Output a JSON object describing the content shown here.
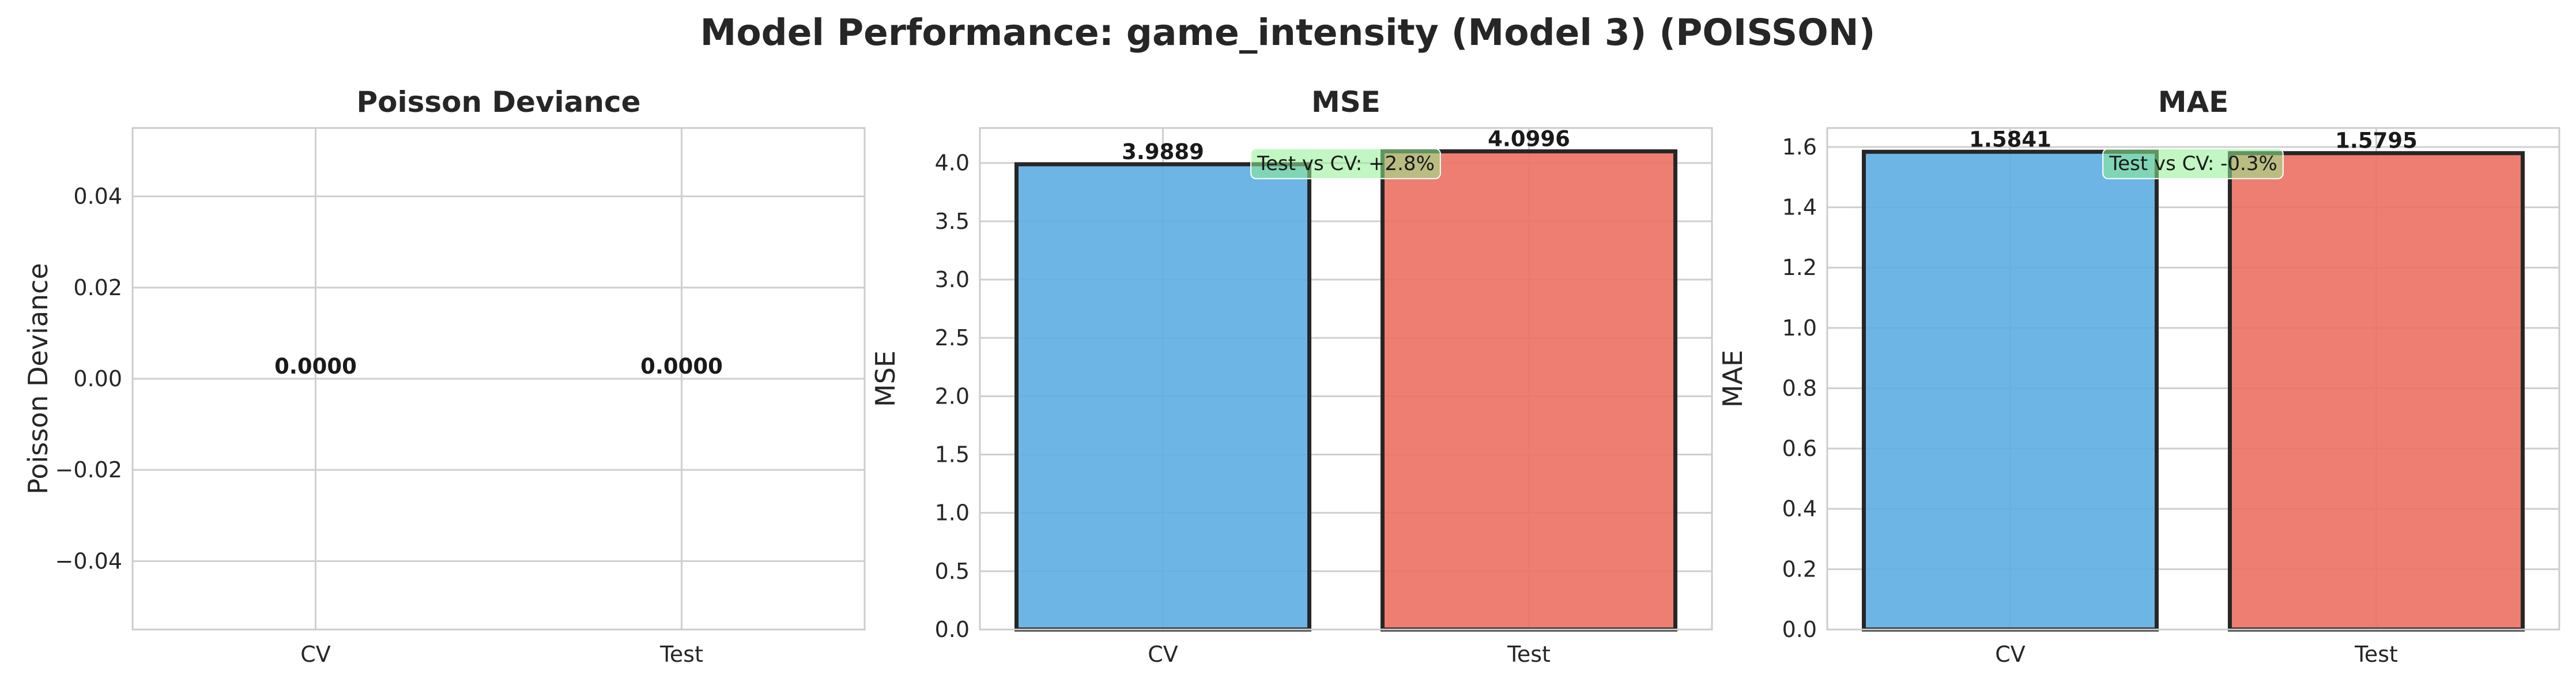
{
  "title": "Model Performance: game_intensity (Model 3) (POISSON)",
  "colors": {
    "cv": "#5DADE2",
    "test": "#EC7063",
    "annotation_bg": "#90EE90"
  },
  "chart_data": [
    {
      "type": "bar",
      "title": "Poisson Deviance",
      "xlabel": "",
      "ylabel": "Poisson Deviance",
      "categories": [
        "CV",
        "Test"
      ],
      "values": [
        0.0,
        0.0
      ],
      "value_labels": [
        "0.0000",
        "0.0000"
      ],
      "ylim": [
        -0.055,
        0.055
      ],
      "yticks": [
        -0.04,
        -0.02,
        0.0,
        0.02,
        0.04
      ],
      "ytick_labels": [
        "−0.04",
        "−0.02",
        "0.00",
        "0.02",
        "0.04"
      ],
      "grid": true
    },
    {
      "type": "bar",
      "title": "MSE",
      "xlabel": "",
      "ylabel": "MSE",
      "categories": [
        "CV",
        "Test"
      ],
      "values": [
        3.9889,
        4.0996
      ],
      "value_labels": [
        "3.9889",
        "4.0996"
      ],
      "ylim": [
        0,
        4.3
      ],
      "yticks": [
        0.0,
        0.5,
        1.0,
        1.5,
        2.0,
        2.5,
        3.0,
        3.5,
        4.0
      ],
      "ytick_labels": [
        "0.0",
        "0.5",
        "1.0",
        "1.5",
        "2.0",
        "2.5",
        "3.0",
        "3.5",
        "4.0"
      ],
      "annotation": "Test vs CV: +2.8%",
      "grid": true
    },
    {
      "type": "bar",
      "title": "MAE",
      "xlabel": "",
      "ylabel": "MAE",
      "categories": [
        "CV",
        "Test"
      ],
      "values": [
        1.5841,
        1.5795
      ],
      "value_labels": [
        "1.5841",
        "1.5795"
      ],
      "ylim": [
        0,
        1.663
      ],
      "yticks": [
        0.0,
        0.2,
        0.4,
        0.6,
        0.8,
        1.0,
        1.2,
        1.4,
        1.6
      ],
      "ytick_labels": [
        "0.0",
        "0.2",
        "0.4",
        "0.6",
        "0.8",
        "1.0",
        "1.2",
        "1.4",
        "1.6"
      ],
      "annotation": "Test vs CV: -0.3%",
      "grid": true
    }
  ]
}
